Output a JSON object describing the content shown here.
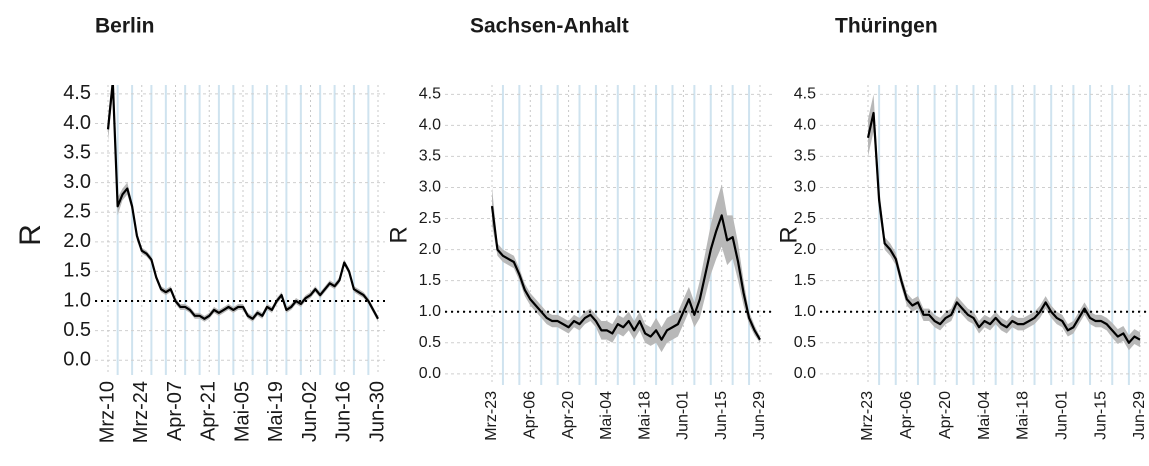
{
  "chart_data": [
    {
      "type": "line",
      "title": "Berlin",
      "y_label": "R",
      "categories": [
        "Mrz-10",
        null,
        null,
        null,
        null,
        null,
        null,
        "Mrz-24",
        null,
        null,
        null,
        null,
        null,
        null,
        "Apr-07",
        null,
        null,
        null,
        null,
        null,
        null,
        "Apr-21",
        null,
        null,
        null,
        null,
        null,
        null,
        "Mai-05",
        null,
        null,
        null,
        null,
        null,
        null,
        "Mai-19",
        null,
        null,
        null,
        null,
        null,
        null,
        "Jun-02",
        null,
        null,
        null,
        null,
        null,
        null,
        "Jun-16",
        null,
        null,
        null,
        null,
        null,
        null,
        "Jun-30"
      ],
      "series": [
        {
          "color": "#000000",
          "band_color": "#b8b8b8",
          "values": [
            3.9,
            4.7,
            2.6,
            2.8,
            2.9,
            2.6,
            2.1,
            1.85,
            1.8,
            1.7,
            1.4,
            1.2,
            1.15,
            1.2,
            1.0,
            0.9,
            0.9,
            0.85,
            0.75,
            0.75,
            0.7,
            0.75,
            0.85,
            0.8,
            0.85,
            0.9,
            0.85,
            0.9,
            0.9,
            0.75,
            0.7,
            0.8,
            0.75,
            0.9,
            0.85,
            1.0,
            1.1,
            0.85,
            0.9,
            1.0,
            0.95,
            1.05,
            1.1,
            1.2,
            1.1,
            1.2,
            1.3,
            1.25,
            1.35,
            1.65,
            1.5,
            1.2,
            1.15,
            1.1,
            1.0,
            0.85,
            0.7
          ],
          "ci": [
            0.2,
            0.2,
            0.15,
            0.1,
            0.1,
            0.08,
            0.08,
            0.05,
            0.05,
            0.05,
            0.05,
            0.05,
            0.05,
            0.05,
            0.05,
            0.05,
            0.05,
            0.05,
            0.05,
            0.05,
            0.05,
            0.05,
            0.05,
            0.05,
            0.05,
            0.05,
            0.05,
            0.05,
            0.05,
            0.05,
            0.05,
            0.05,
            0.05,
            0.05,
            0.05,
            0.05,
            0.05,
            0.05,
            0.05,
            0.05,
            0.05,
            0.05,
            0.05,
            0.05,
            0.05,
            0.05,
            0.05,
            0.05,
            0.05,
            0.05,
            0.05,
            0.05,
            0.05,
            0.05,
            0.05,
            0.05,
            0.05
          ]
        }
      ],
      "ylim": [
        -0.25,
        4.65
      ],
      "yticks": [
        {
          "value": 0,
          "label": "0.0"
        },
        0.5,
        {
          "value": 1,
          "label": "1.0"
        },
        1.5,
        {
          "value": 2,
          "label": "2.0"
        },
        2.5,
        {
          "value": 3,
          "label": "3.0"
        },
        3.5,
        {
          "value": 4,
          "label": "4.0"
        },
        4.5
      ],
      "hline": 1,
      "grid": true
    },
    {
      "type": "line",
      "title": "Sachsen-Anhalt",
      "y_label": "R",
      "categories": [
        "Mrz-23",
        null,
        null,
        null,
        null,
        null,
        null,
        "Apr-06",
        null,
        null,
        null,
        null,
        null,
        null,
        "Apr-20",
        null,
        null,
        null,
        null,
        null,
        null,
        "Mai-04",
        null,
        null,
        null,
        null,
        null,
        null,
        "Mai-18",
        null,
        null,
        null,
        null,
        null,
        null,
        "Jun-01",
        null,
        null,
        null,
        null,
        null,
        null,
        "Jun-15",
        null,
        null,
        null,
        null,
        null,
        null,
        "Jun-29"
      ],
      "series": [
        {
          "color": "#000000",
          "band_color": "#b8b8b8",
          "values": [
            2.7,
            2.0,
            1.9,
            1.85,
            1.8,
            1.6,
            1.35,
            1.2,
            1.1,
            1.0,
            0.9,
            0.85,
            0.85,
            0.8,
            0.75,
            0.85,
            0.8,
            0.9,
            0.95,
            0.85,
            0.7,
            0.7,
            0.65,
            0.8,
            0.75,
            0.85,
            0.7,
            0.85,
            0.65,
            0.6,
            0.7,
            0.55,
            0.7,
            0.75,
            0.8,
            1.0,
            1.2,
            0.95,
            1.2,
            1.6,
            2.0,
            2.3,
            2.55,
            2.15,
            2.2,
            1.8,
            1.3,
            0.9,
            0.7,
            0.55
          ],
          "ci": [
            0.3,
            0.1,
            0.1,
            0.1,
            0.1,
            0.1,
            0.1,
            0.1,
            0.1,
            0.1,
            0.1,
            0.1,
            0.1,
            0.1,
            0.1,
            0.1,
            0.1,
            0.1,
            0.1,
            0.1,
            0.15,
            0.15,
            0.15,
            0.15,
            0.15,
            0.15,
            0.15,
            0.15,
            0.15,
            0.15,
            0.2,
            0.2,
            0.2,
            0.2,
            0.2,
            0.2,
            0.2,
            0.2,
            0.3,
            0.35,
            0.4,
            0.45,
            0.5,
            0.4,
            0.35,
            0.3,
            0.2,
            0.1,
            0.08,
            0.05
          ]
        }
      ],
      "ylim": [
        -0.18,
        4.65
      ],
      "yticks": [
        {
          "value": 0,
          "label": "0.0"
        },
        0.5,
        {
          "value": 1,
          "label": "1.0"
        },
        1.5,
        {
          "value": 2,
          "label": "2.0"
        },
        2.5,
        {
          "value": 3,
          "label": "3.0"
        },
        3.5,
        {
          "value": 4,
          "label": "4.0"
        },
        4.5
      ],
      "hline": 1,
      "grid": true
    },
    {
      "type": "line",
      "title": "Thüringen",
      "y_label": "R",
      "categories": [
        "Mrz-23",
        null,
        null,
        null,
        null,
        null,
        null,
        "Apr-06",
        null,
        null,
        null,
        null,
        null,
        null,
        "Apr-20",
        null,
        null,
        null,
        null,
        null,
        null,
        "Mai-04",
        null,
        null,
        null,
        null,
        null,
        null,
        "Mai-18",
        null,
        null,
        null,
        null,
        null,
        null,
        "Jun-01",
        null,
        null,
        null,
        null,
        null,
        null,
        "Jun-15",
        null,
        null,
        null,
        null,
        null,
        null,
        "Jun-29"
      ],
      "series": [
        {
          "color": "#000000",
          "band_color": "#b8b8b8",
          "values": [
            3.8,
            4.2,
            2.8,
            2.1,
            2.0,
            1.85,
            1.5,
            1.2,
            1.1,
            1.15,
            0.95,
            0.95,
            0.85,
            0.8,
            0.9,
            0.95,
            1.15,
            1.05,
            0.95,
            0.9,
            0.75,
            0.85,
            0.8,
            0.9,
            0.8,
            0.75,
            0.85,
            0.8,
            0.8,
            0.85,
            0.9,
            1.0,
            1.15,
            1.0,
            0.9,
            0.85,
            0.7,
            0.75,
            0.9,
            1.05,
            0.9,
            0.85,
            0.85,
            0.8,
            0.7,
            0.6,
            0.65,
            0.5,
            0.6,
            0.55
          ],
          "ci": [
            0.3,
            0.3,
            0.2,
            0.1,
            0.1,
            0.1,
            0.1,
            0.1,
            0.1,
            0.1,
            0.1,
            0.1,
            0.1,
            0.1,
            0.1,
            0.1,
            0.1,
            0.1,
            0.1,
            0.1,
            0.1,
            0.1,
            0.1,
            0.1,
            0.1,
            0.1,
            0.1,
            0.1,
            0.1,
            0.1,
            0.1,
            0.1,
            0.1,
            0.1,
            0.1,
            0.1,
            0.1,
            0.1,
            0.1,
            0.1,
            0.1,
            0.1,
            0.1,
            0.1,
            0.12,
            0.12,
            0.12,
            0.12,
            0.12,
            0.12
          ]
        }
      ],
      "ylim": [
        -0.18,
        4.65
      ],
      "yticks": [
        {
          "value": 0,
          "label": "0.0"
        },
        0.5,
        {
          "value": 1,
          "label": "1.0"
        },
        1.5,
        {
          "value": 2,
          "label": "2.0"
        },
        2.5,
        {
          "value": 3,
          "label": "3.0"
        },
        3.5,
        {
          "value": 4,
          "label": "4.0"
        },
        4.5
      ],
      "hline": 1,
      "grid": true
    }
  ]
}
